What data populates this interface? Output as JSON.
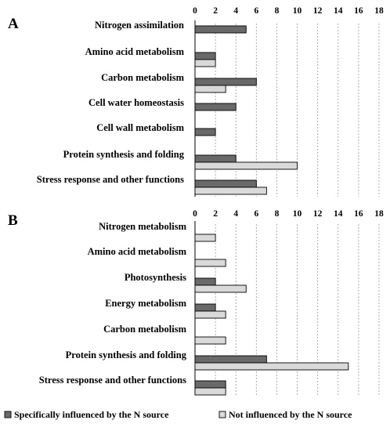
{
  "chart_data": [
    {
      "type": "bar",
      "orientation": "horizontal",
      "panel_label": "A",
      "categories": [
        "Nitrogen assimilation",
        "Amino acid metabolism",
        "Carbon metabolism",
        "Cell water homeostasis",
        "Cell wall metabolism",
        "Protein synthesis and folding",
        "Stress response and other functions"
      ],
      "series": [
        {
          "name": "Specifically influenced by the N source",
          "color": "#696969",
          "values": [
            5,
            2,
            6,
            4,
            2,
            4,
            6
          ]
        },
        {
          "name": "Not influenced by the N source",
          "color": "#d9d9d9",
          "values": [
            0,
            2,
            3,
            0,
            0,
            10,
            7
          ]
        }
      ],
      "xlim": [
        0,
        18
      ],
      "xticks": [
        0,
        2,
        4,
        6,
        8,
        10,
        12,
        14,
        16,
        18
      ],
      "axis_position": "top",
      "grid": true
    },
    {
      "type": "bar",
      "orientation": "horizontal",
      "panel_label": "B",
      "categories": [
        "Nitrogen metabolism",
        "Amino acid metabolism",
        "Photosynthesis",
        "Energy metabolism",
        "Carbon metabolism",
        "Protein synthesis and folding",
        "Stress response and other functions"
      ],
      "series": [
        {
          "name": "Specifically influenced by the N source",
          "color": "#696969",
          "values": [
            0,
            0,
            2,
            2,
            0,
            7,
            3
          ]
        },
        {
          "name": "Not influenced by the N source",
          "color": "#d9d9d9",
          "values": [
            2,
            3,
            5,
            3,
            3,
            15,
            3
          ]
        }
      ],
      "xlim": [
        0,
        18
      ],
      "xticks": [
        0,
        2,
        4,
        6,
        8,
        10,
        12,
        14,
        16,
        18
      ],
      "axis_position": "top",
      "grid": true
    }
  ],
  "legend": {
    "placement": "bottom",
    "items": [
      {
        "label": "Specifically influenced by the N source",
        "color": "#696969"
      },
      {
        "label": "Not influenced by the N source",
        "color": "#d9d9d9"
      }
    ]
  }
}
